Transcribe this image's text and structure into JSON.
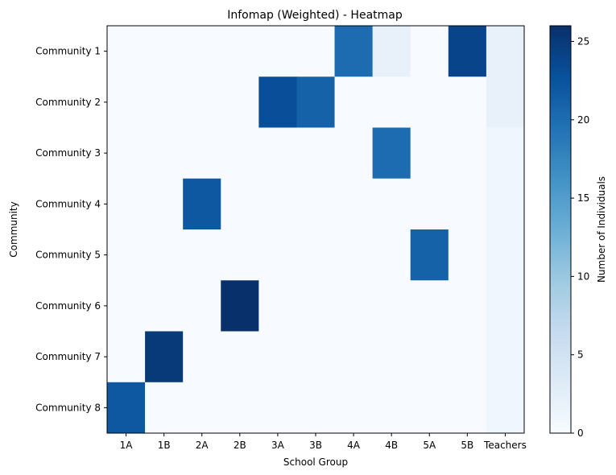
{
  "chart_data": {
    "type": "heatmap",
    "title": "Infomap (Weighted) - Heatmap",
    "xlabel": "School Group",
    "ylabel": "Community",
    "x_categories": [
      "1A",
      "1B",
      "2A",
      "2B",
      "3A",
      "3B",
      "4A",
      "4B",
      "5A",
      "5B",
      "Teachers"
    ],
    "y_categories": [
      "Community 1",
      "Community 2",
      "Community 3",
      "Community 4",
      "Community 5",
      "Community 6",
      "Community 7",
      "Community 8"
    ],
    "values": [
      [
        0,
        0,
        0,
        0,
        0,
        0,
        20,
        2,
        0,
        24,
        2
      ],
      [
        0,
        0,
        0,
        0,
        23,
        21,
        0,
        0,
        0,
        0,
        2
      ],
      [
        0,
        0,
        0,
        0,
        0,
        0,
        0,
        20,
        0,
        0,
        1
      ],
      [
        0,
        0,
        22,
        0,
        0,
        0,
        0,
        0,
        0,
        0,
        1
      ],
      [
        0,
        0,
        0,
        0,
        0,
        0,
        0,
        0,
        21,
        0,
        1
      ],
      [
        0,
        0,
        0,
        26,
        0,
        0,
        0,
        0,
        0,
        0,
        1
      ],
      [
        0,
        25,
        0,
        0,
        0,
        0,
        0,
        0,
        0,
        0,
        1
      ],
      [
        22,
        0,
        0,
        0,
        0,
        0,
        0,
        0,
        0,
        0,
        1
      ]
    ],
    "colormap": "Blues",
    "vmin": 0,
    "vmax": 26,
    "colorbar": {
      "label": "Number of Individuals",
      "ticks": [
        0,
        5,
        10,
        15,
        20,
        25
      ]
    },
    "grid": false
  }
}
